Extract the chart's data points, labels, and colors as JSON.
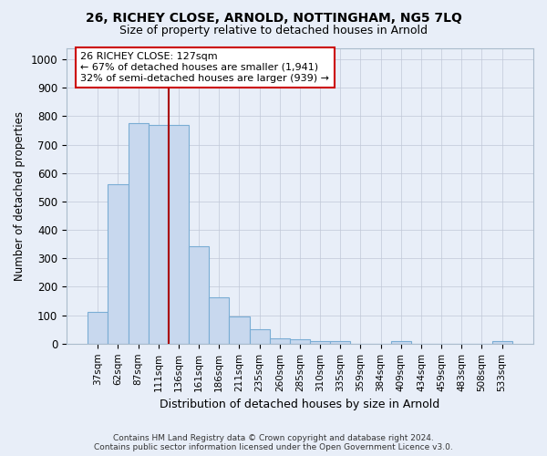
{
  "title": "26, RICHEY CLOSE, ARNOLD, NOTTINGHAM, NG5 7LQ",
  "subtitle": "Size of property relative to detached houses in Arnold",
  "xlabel": "Distribution of detached houses by size in Arnold",
  "ylabel": "Number of detached properties",
  "footer_line1": "Contains HM Land Registry data © Crown copyright and database right 2024.",
  "footer_line2": "Contains public sector information licensed under the Open Government Licence v3.0.",
  "bar_labels": [
    "37sqm",
    "62sqm",
    "87sqm",
    "111sqm",
    "136sqm",
    "161sqm",
    "186sqm",
    "211sqm",
    "235sqm",
    "260sqm",
    "285sqm",
    "310sqm",
    "335sqm",
    "359sqm",
    "384sqm",
    "409sqm",
    "434sqm",
    "459sqm",
    "483sqm",
    "508sqm",
    "533sqm"
  ],
  "bar_values": [
    113,
    560,
    775,
    770,
    770,
    343,
    163,
    97,
    52,
    18,
    14,
    10,
    10,
    0,
    0,
    8,
    0,
    0,
    0,
    0,
    8
  ],
  "bar_color": "#c8d8ee",
  "bar_edgecolor": "#7aadd4",
  "ylim": [
    0,
    1040
  ],
  "yticks": [
    0,
    100,
    200,
    300,
    400,
    500,
    600,
    700,
    800,
    900,
    1000
  ],
  "vline_color": "#aa0000",
  "annotation_line1": "26 RICHEY CLOSE: 127sqm",
  "annotation_line2": "← 67% of detached houses are smaller (1,941)",
  "annotation_line3": "32% of semi-detached houses are larger (939) →",
  "annotation_box_color": "#ffffff",
  "annotation_box_edgecolor": "#cc0000",
  "bg_color": "#e8eef8",
  "plot_bg_color": "#e8eef8",
  "title_fontsize": 10,
  "subtitle_fontsize": 9
}
